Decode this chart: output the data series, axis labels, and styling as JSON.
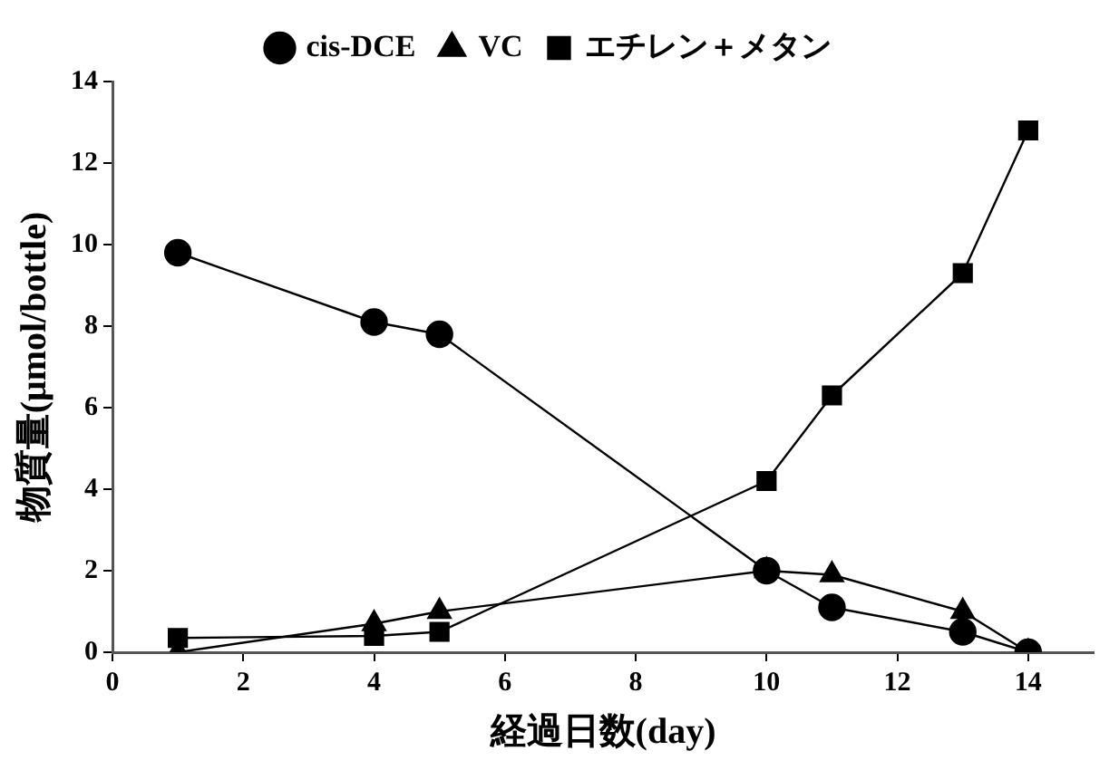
{
  "chart_data": {
    "type": "line",
    "xlabel": "経過日数(day)",
    "ylabel": "物質量(μmol/bottle)",
    "x": [
      1,
      4,
      5,
      10,
      11,
      13,
      14
    ],
    "series": [
      {
        "name": "cis-DCE",
        "color": "#000000",
        "marker": "circle",
        "values": [
          9.8,
          8.1,
          7.8,
          2.0,
          1.1,
          0.5,
          0
        ]
      },
      {
        "name": "VC",
        "color": "#000000",
        "marker": "triangle",
        "values": [
          0,
          0.7,
          1.0,
          2.0,
          1.9,
          1.0,
          0
        ]
      },
      {
        "name": "エチレン＋メタン",
        "color": "#000000",
        "marker": "square",
        "values": [
          0.35,
          0.4,
          0.5,
          4.2,
          6.3,
          9.3,
          12.8
        ]
      }
    ],
    "xlim": [
      0,
      15
    ],
    "xticks": [
      0,
      2,
      4,
      6,
      8,
      10,
      12,
      14
    ],
    "ylim": [
      0,
      14
    ],
    "yticks": [
      0,
      2,
      4,
      6,
      8,
      10,
      12,
      14
    ],
    "grid": false,
    "legend": "top",
    "line_style": "solid"
  }
}
